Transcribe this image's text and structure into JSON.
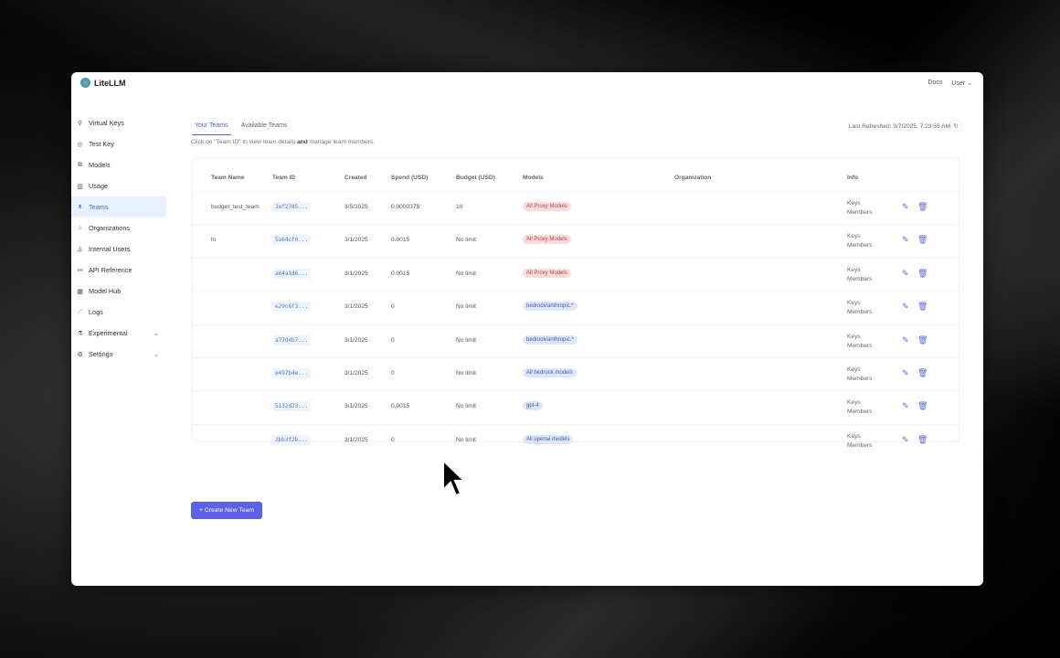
{
  "app": {
    "name": "LiteLLM"
  },
  "topbar": {
    "docs": "Docs",
    "user": "User"
  },
  "sidebar": {
    "items": [
      {
        "label": "Virtual Keys",
        "icon": "key-icon",
        "glyph": "⚲"
      },
      {
        "label": "Test Key",
        "icon": "play-circle-icon",
        "glyph": "◎"
      },
      {
        "label": "Models",
        "icon": "block-icon",
        "glyph": "⧉"
      },
      {
        "label": "Usage",
        "icon": "bar-chart-icon",
        "glyph": "▥"
      },
      {
        "label": "Teams",
        "icon": "team-icon",
        "glyph": "ᴥ",
        "active": true
      },
      {
        "label": "Organizations",
        "icon": "bank-icon",
        "glyph": "⌂"
      },
      {
        "label": "Internal Users",
        "icon": "user-icon",
        "glyph": "♙"
      },
      {
        "label": "API Reference",
        "icon": "api-icon",
        "glyph": "⚯"
      },
      {
        "label": "Model Hub",
        "icon": "app-store-icon",
        "glyph": "▦"
      },
      {
        "label": "Logs",
        "icon": "line-chart-icon",
        "glyph": "⟋"
      },
      {
        "label": "Experimental",
        "icon": "experiment-icon",
        "glyph": "⚗",
        "chevron": true
      },
      {
        "label": "Settings",
        "icon": "settings-icon",
        "glyph": "⚙",
        "chevron": true
      }
    ]
  },
  "tabs": [
    {
      "label": "Your Teams",
      "active": true
    },
    {
      "label": "Available Teams"
    }
  ],
  "hint": {
    "pre": "Click on \"Team ID\" to view team details ",
    "bold": "and",
    "post": " manage team members."
  },
  "refresh": {
    "label": "Last Refreshed: 3/7/2025, 7:23:55 AM"
  },
  "table": {
    "headers": [
      "Team Name",
      "Team ID",
      "Created",
      "Spend (USD)",
      "Budget (USD)",
      "Models",
      "Organization",
      "Info"
    ],
    "rows": [
      {
        "name": "budget_test_team",
        "id": "3ef2785...",
        "created": "3/5/2025",
        "spend": "0.0000375",
        "budget": "10",
        "model": "All Proxy Models",
        "model_color": "red"
      },
      {
        "name": "hi",
        "id": "5a64cf0...",
        "created": "3/1/2025",
        "spend": "0.0015",
        "budget": "No limit",
        "model": "All Proxy Models",
        "model_color": "red"
      },
      {
        "name": "",
        "id": "a64a1d6...",
        "created": "3/1/2025",
        "spend": "0.0015",
        "budget": "No limit",
        "model": "All Proxy Models",
        "model_color": "red"
      },
      {
        "name": "",
        "id": "e29c6f3...",
        "created": "3/1/2025",
        "spend": "0",
        "budget": "No limit",
        "model": "bedrock/anthropic.*",
        "model_color": "blue"
      },
      {
        "name": "",
        "id": "a77d4b7...",
        "created": "3/1/2025",
        "spend": "0",
        "budget": "No limit",
        "model": "bedrock/anthropic.*",
        "model_color": "blue"
      },
      {
        "name": "",
        "id": "e497b4e...",
        "created": "3/1/2025",
        "spend": "0",
        "budget": "No limit",
        "model": "All bedrock models",
        "model_color": "blue"
      },
      {
        "name": "",
        "id": "5132d23...",
        "created": "3/1/2025",
        "spend": "0.0015",
        "budget": "No limit",
        "model": "gpt-4",
        "model_color": "blue"
      },
      {
        "name": "",
        "id": "2bb3f2b...",
        "created": "3/1/2025",
        "spend": "0",
        "budget": "No limit",
        "model": "All openai models",
        "model_color": "blue"
      }
    ],
    "info_keys": "Keys",
    "info_members": "Members"
  },
  "create_button": "+ Create New Team"
}
